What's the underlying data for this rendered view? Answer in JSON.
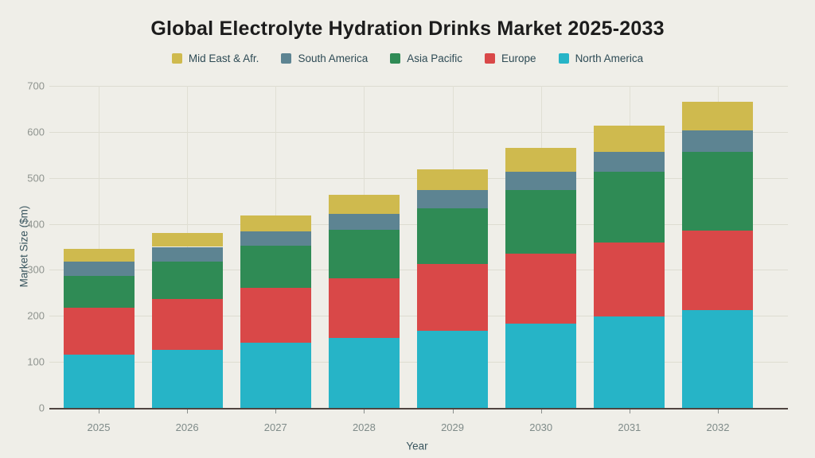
{
  "title": "Global Electrolyte Hydration Drinks Market 2025-2033",
  "legend": [
    {
      "label": "Mid East & Afr.",
      "color": "#cfba4e"
    },
    {
      "label": "South America",
      "color": "#5d8492"
    },
    {
      "label": "Asia Pacific",
      "color": "#2f8b55"
    },
    {
      "label": "Europe",
      "color": "#d94848"
    },
    {
      "label": "North America",
      "color": "#26b4c7"
    }
  ],
  "chart_data": {
    "type": "bar",
    "stacked": true,
    "title": "Global Electrolyte Hydration Drinks Market 2025-2033",
    "categories": [
      "2025",
      "2026",
      "2027",
      "2028",
      "2029",
      "2030",
      "2031",
      "2032"
    ],
    "series": [
      {
        "name": "North America",
        "color": "#26b4c7",
        "values": [
          115,
          127,
          142,
          152,
          167,
          183,
          198,
          212
        ]
      },
      {
        "name": "Europe",
        "color": "#d94848",
        "values": [
          102,
          109,
          119,
          130,
          146,
          152,
          162,
          174
        ]
      },
      {
        "name": "Asia Pacific",
        "color": "#2f8b55",
        "values": [
          70,
          82,
          92,
          105,
          120,
          139,
          154,
          171
        ]
      },
      {
        "name": "South America",
        "color": "#5d8492",
        "values": [
          31,
          32,
          31,
          35,
          40,
          40,
          43,
          47
        ]
      },
      {
        "name": "Mid East & Afr.",
        "color": "#cfba4e",
        "values": [
          27,
          30,
          34,
          41,
          45,
          51,
          56,
          62
        ]
      }
    ],
    "stack_totals": [
      345,
      380,
      418,
      463,
      518,
      565,
      613,
      666
    ],
    "xlabel": "Year",
    "ylabel": "Market Size ($m)",
    "ylim": [
      0,
      700
    ],
    "y_ticks": [
      0,
      100,
      200,
      300,
      400,
      500,
      600,
      700
    ],
    "grid": true,
    "legend_position": "top"
  },
  "colors": {
    "background": "#efeee8",
    "gridline": "#dddcd1",
    "axis_line": "#4f4540",
    "tick_label": "#8f948f",
    "axis_title": "#3a565f",
    "legend_text": "#2e4b55",
    "title_text": "#1c1c1c"
  }
}
